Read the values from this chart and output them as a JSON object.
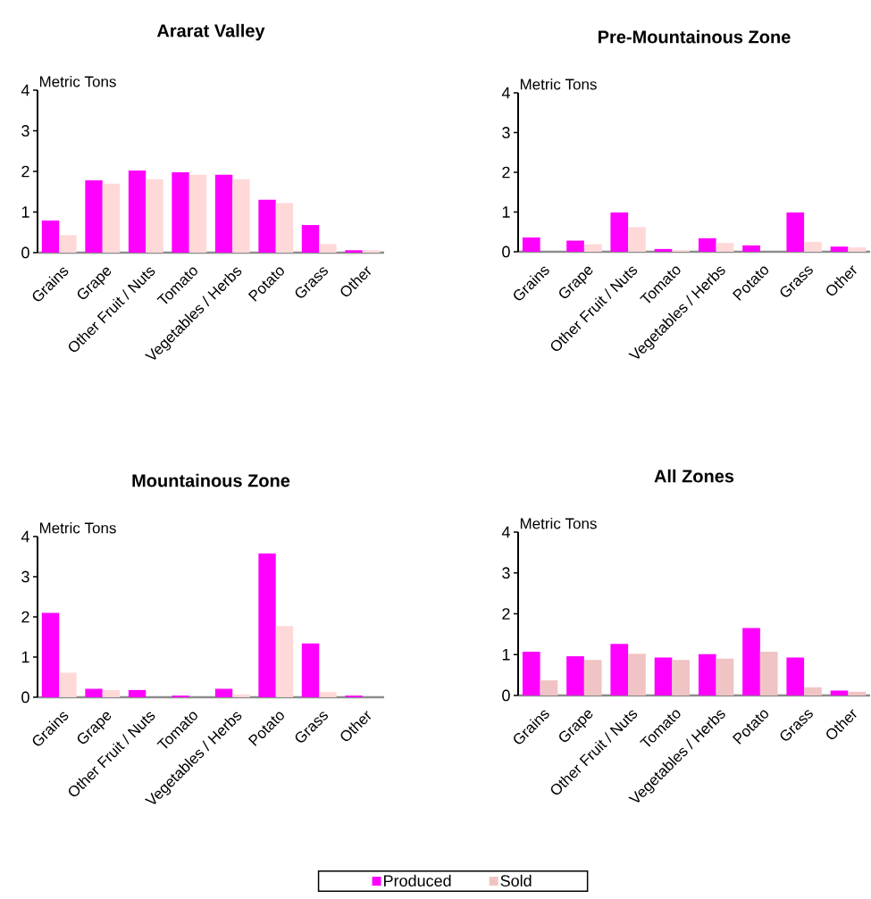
{
  "chart_data": [
    {
      "type": "bar",
      "title": "Ararat Valley",
      "ylabel": "Metric Tons",
      "categories": [
        "Grains",
        "Grape",
        "Other Fruit / Nuts",
        "Tomato",
        "Vegetables / Herbs",
        "Potato",
        "Grass",
        "Other"
      ],
      "ylim": [
        0,
        4
      ],
      "yticks": [
        0,
        1,
        2,
        3,
        4
      ],
      "legend": false,
      "series": [
        {
          "color": "#ff00ff",
          "values": [
            0.79,
            1.78,
            2.02,
            1.98,
            1.92,
            1.3,
            0.68,
            0.06
          ]
        },
        {
          "color": "#ffd8d8",
          "values": [
            0.43,
            1.7,
            1.81,
            1.92,
            1.81,
            1.22,
            0.21,
            0.06
          ]
        }
      ]
    },
    {
      "type": "bar",
      "title": "Pre-Mountainous Zone",
      "ylabel": "Metric Tons",
      "categories": [
        "Grains",
        "Grape",
        "Other Fruit / Nuts",
        "Tomato",
        "Vegetables / Herbs",
        "Potato",
        "Grass",
        "Other"
      ],
      "ylim": [
        0,
        4
      ],
      "yticks": [
        0,
        1,
        2,
        3,
        4
      ],
      "legend": false,
      "series": [
        {
          "color": "#ff00ff",
          "values": [
            0.36,
            0.28,
            0.99,
            0.07,
            0.34,
            0.16,
            0.99,
            0.13
          ]
        },
        {
          "color": "#ffd8d8",
          "values": [
            0,
            0.19,
            0.62,
            0.04,
            0.22,
            0,
            0.25,
            0.11
          ]
        }
      ]
    },
    {
      "type": "bar",
      "title": "Mountainous Zone",
      "ylabel": "Metric Tons",
      "categories": [
        "Grains",
        "Grape",
        "Other Fruit / Nuts",
        "Tomato",
        "Vegetables / Herbs",
        "Potato",
        "Grass",
        "Other"
      ],
      "ylim": [
        0,
        4
      ],
      "yticks": [
        0,
        1,
        2,
        3,
        4
      ],
      "legend": false,
      "series": [
        {
          "color": "#ff00ff",
          "values": [
            2.1,
            0.21,
            0.18,
            0.04,
            0.21,
            3.58,
            1.34,
            0.04
          ]
        },
        {
          "color": "#ffd8d8",
          "values": [
            0.61,
            0.18,
            0,
            0,
            0.07,
            1.77,
            0.13,
            0
          ]
        }
      ]
    },
    {
      "type": "bar",
      "title": "All Zones",
      "ylabel": "Metric Tons",
      "categories": [
        "Grains",
        "Grape",
        "Other Fruit / Nuts",
        "Tomato",
        "Vegetables / Herbs",
        "Potato",
        "Grass",
        "Other"
      ],
      "ylim": [
        0,
        4
      ],
      "yticks": [
        0,
        1,
        2,
        3,
        4
      ],
      "legend": "bottom",
      "series": [
        {
          "name": "Produced",
          "color": "#ff00ff",
          "values": [
            1.07,
            0.96,
            1.26,
            0.93,
            1.01,
            1.65,
            0.93,
            0.12
          ]
        },
        {
          "name": "Sold",
          "color": "#f0c4c4",
          "values": [
            0.37,
            0.87,
            1.02,
            0.87,
            0.9,
            1.07,
            0.2,
            0.09
          ]
        }
      ]
    }
  ]
}
